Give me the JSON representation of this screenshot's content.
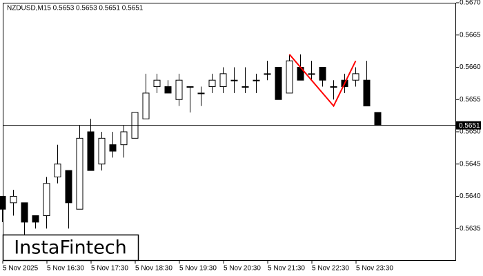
{
  "chart_data": {
    "type": "candlestick",
    "title": "NZDUSD,M15  0.5653 0.5653 0.5651 0.5651",
    "categories": [
      "5 Nov 2025",
      null,
      null,
      null,
      "5 Nov 16:30",
      null,
      null,
      null,
      "5 Nov 17:30",
      null,
      null,
      null,
      "5 Nov 18:30",
      null,
      null,
      null,
      "5 Nov 19:30",
      null,
      null,
      null,
      "5 Nov 20:30",
      null,
      null,
      null,
      "5 Nov 21:30",
      null,
      null,
      null,
      "5 Nov 22:30",
      null,
      null,
      null,
      "5 Nov 23:30",
      null,
      null
    ],
    "open": [
      0.564,
      0.5639,
      0.5639,
      0.5637,
      0.5637,
      0.5643,
      0.5644,
      0.5638,
      0.565,
      0.5645,
      0.5648,
      0.5648,
      0.5649,
      0.5652,
      0.5657,
      0.5657,
      0.5655,
      0.5657,
      0.5656,
      0.5657,
      0.5657,
      0.5658,
      0.5657,
      0.5658,
      0.5659,
      0.566,
      0.5656,
      0.566,
      0.5659,
      0.566,
      0.5657,
      0.5658,
      0.5658,
      0.5658,
      0.5653
    ],
    "high": [
      0.564,
      0.5641,
      0.5639,
      0.5637,
      0.5643,
      0.5648,
      0.5644,
      0.5651,
      0.5652,
      0.565,
      0.565,
      0.5651,
      0.5653,
      0.5659,
      0.5659,
      0.5658,
      0.5659,
      0.5657,
      0.5657,
      0.5659,
      0.566,
      0.566,
      0.566,
      0.5659,
      0.5661,
      0.566,
      0.5662,
      0.5662,
      0.5661,
      0.566,
      0.5658,
      0.5659,
      0.566,
      0.5661,
      0.5653
    ],
    "low": [
      0.5636,
      0.5637,
      0.5633,
      0.5635,
      0.5635,
      0.5642,
      0.5635,
      0.5638,
      0.5644,
      0.5644,
      0.5646,
      0.5646,
      0.5649,
      0.5652,
      0.5656,
      0.5656,
      0.5654,
      0.5653,
      0.5654,
      0.5656,
      0.5656,
      0.5656,
      0.5656,
      0.5656,
      0.5658,
      0.5655,
      0.5656,
      0.5658,
      0.5658,
      0.5657,
      0.5655,
      0.5656,
      0.5657,
      0.5654,
      0.5651
    ],
    "close": [
      0.5638,
      0.564,
      0.5636,
      0.5636,
      0.5642,
      0.5645,
      0.5639,
      0.5649,
      0.5644,
      0.5649,
      0.5647,
      0.565,
      0.5653,
      0.5656,
      0.5658,
      0.5656,
      0.5658,
      0.5657,
      0.5656,
      0.5658,
      0.5659,
      0.5658,
      0.5657,
      0.5658,
      0.5659,
      0.5655,
      0.5661,
      0.5658,
      0.5659,
      0.5658,
      0.5657,
      0.5657,
      0.5659,
      0.5654,
      0.5651
    ],
    "up_color": "#ffffff",
    "down_color": "#000000",
    "ylim": [
      0.563,
      0.567
    ],
    "yticks": [
      {
        "value": 0.5635,
        "label": "0.5635"
      },
      {
        "value": 0.564,
        "label": "0.5640"
      },
      {
        "value": 0.5645,
        "label": "0.5645"
      },
      {
        "value": 0.565,
        "label": "0.5650"
      },
      {
        "value": 0.5655,
        "label": "0.5655"
      },
      {
        "value": 0.566,
        "label": "0.5660"
      },
      {
        "value": 0.5665,
        "label": "0.5665"
      },
      {
        "value": 0.567,
        "label": "0.5670"
      }
    ],
    "current_price": 0.5651,
    "pattern": {
      "color": "#ff0000",
      "points": [
        {
          "index": 26,
          "value": 0.5662
        },
        {
          "index": 30,
          "value": 0.5654
        },
        {
          "index": 32,
          "value": 0.5661
        }
      ]
    }
  },
  "logo": "InstaFintech"
}
